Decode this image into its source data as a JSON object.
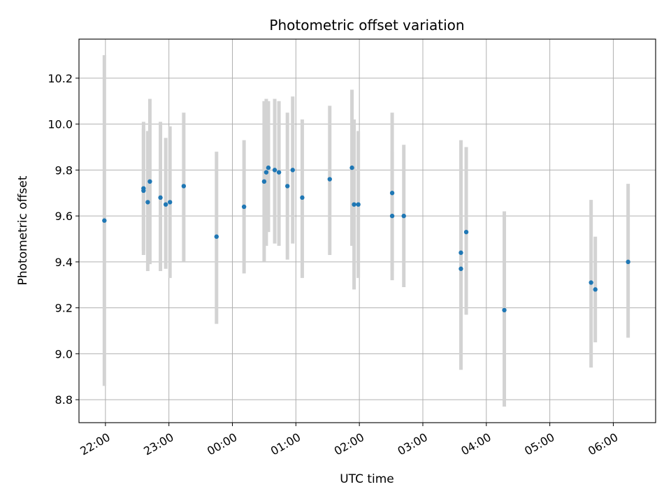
{
  "chart_data": {
    "type": "scatter",
    "title": "Photometric offset variation",
    "xlabel": "UTC time",
    "ylabel": "Photometric offset",
    "x_axis": "time (UTC)",
    "xlim": [
      "21:35",
      "06:40"
    ],
    "ylim": [
      8.7,
      10.37
    ],
    "x_ticks": [
      "22:00",
      "23:00",
      "00:00",
      "01:00",
      "02:00",
      "03:00",
      "04:00",
      "05:00",
      "06:00"
    ],
    "y_ticks": [
      8.8,
      9.0,
      9.2,
      9.4,
      9.6,
      9.8,
      10.0,
      10.2
    ],
    "grid": true,
    "colors": {
      "point": "#1f77b4",
      "errorbar": "#d3d3d3",
      "grid": "#b0b0b0"
    },
    "points": [
      {
        "x": "21:59",
        "y": 9.58,
        "y_low": 8.86,
        "y_high": 10.3
      },
      {
        "x": "22:36",
        "y": 9.72,
        "y_low": 9.43,
        "y_high": 10.01
      },
      {
        "x": "22:36",
        "y": 9.71,
        "y_low": 9.45,
        "y_high": 9.98
      },
      {
        "x": "22:40",
        "y": 9.66,
        "y_low": 9.36,
        "y_high": 9.97
      },
      {
        "x": "22:42",
        "y": 9.75,
        "y_low": 9.39,
        "y_high": 10.11
      },
      {
        "x": "22:52",
        "y": 9.68,
        "y_low": 9.36,
        "y_high": 10.01
      },
      {
        "x": "22:57",
        "y": 9.65,
        "y_low": 9.37,
        "y_high": 9.94
      },
      {
        "x": "23:01",
        "y": 9.66,
        "y_low": 9.33,
        "y_high": 9.99
      },
      {
        "x": "23:14",
        "y": 9.73,
        "y_low": 9.4,
        "y_high": 10.05
      },
      {
        "x": "23:45",
        "y": 9.51,
        "y_low": 9.13,
        "y_high": 9.88
      },
      {
        "x": "00:11",
        "y": 9.64,
        "y_low": 9.35,
        "y_high": 9.93
      },
      {
        "x": "00:30",
        "y": 9.75,
        "y_low": 9.4,
        "y_high": 10.1
      },
      {
        "x": "00:32",
        "y": 9.79,
        "y_low": 9.47,
        "y_high": 10.11
      },
      {
        "x": "00:34",
        "y": 9.81,
        "y_low": 9.53,
        "y_high": 10.1
      },
      {
        "x": "00:40",
        "y": 9.8,
        "y_low": 9.48,
        "y_high": 10.11
      },
      {
        "x": "00:44",
        "y": 9.79,
        "y_low": 9.47,
        "y_high": 10.1
      },
      {
        "x": "00:52",
        "y": 9.73,
        "y_low": 9.41,
        "y_high": 10.05
      },
      {
        "x": "00:57",
        "y": 9.8,
        "y_low": 9.48,
        "y_high": 10.12
      },
      {
        "x": "01:06",
        "y": 9.68,
        "y_low": 9.33,
        "y_high": 10.02
      },
      {
        "x": "01:32",
        "y": 9.76,
        "y_low": 9.43,
        "y_high": 10.08
      },
      {
        "x": "01:53",
        "y": 9.81,
        "y_low": 9.47,
        "y_high": 10.15
      },
      {
        "x": "01:55",
        "y": 9.65,
        "y_low": 9.28,
        "y_high": 10.02
      },
      {
        "x": "01:59",
        "y": 9.65,
        "y_low": 9.33,
        "y_high": 9.97
      },
      {
        "x": "02:31",
        "y": 9.7,
        "y_low": 9.36,
        "y_high": 10.05
      },
      {
        "x": "02:31",
        "y": 9.6,
        "y_low": 9.32,
        "y_high": 9.88
      },
      {
        "x": "02:42",
        "y": 9.6,
        "y_low": 9.29,
        "y_high": 9.91
      },
      {
        "x": "03:36",
        "y": 9.44,
        "y_low": 9.01,
        "y_high": 9.93
      },
      {
        "x": "03:36",
        "y": 9.37,
        "y_low": 8.93,
        "y_high": 9.82
      },
      {
        "x": "03:41",
        "y": 9.53,
        "y_low": 9.17,
        "y_high": 9.9
      },
      {
        "x": "04:17",
        "y": 9.19,
        "y_low": 8.77,
        "y_high": 9.62
      },
      {
        "x": "05:39",
        "y": 9.31,
        "y_low": 8.94,
        "y_high": 9.67
      },
      {
        "x": "05:43",
        "y": 9.28,
        "y_low": 9.05,
        "y_high": 9.51
      },
      {
        "x": "06:14",
        "y": 9.4,
        "y_low": 9.07,
        "y_high": 9.74
      }
    ]
  }
}
